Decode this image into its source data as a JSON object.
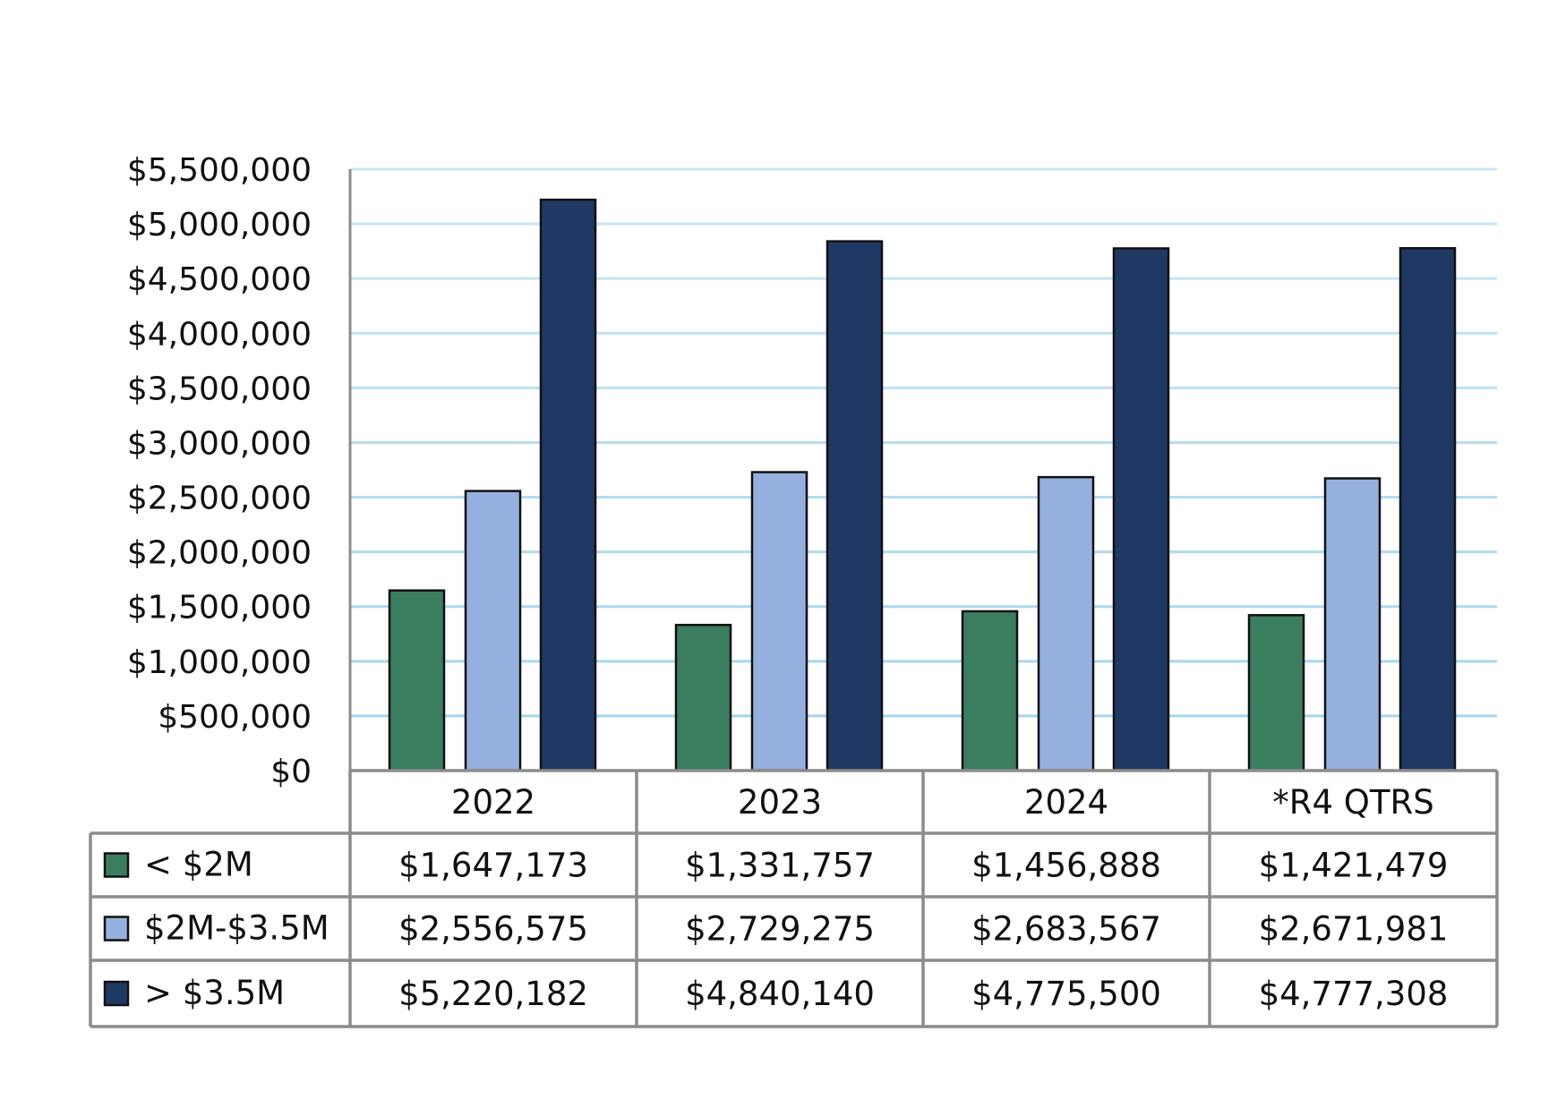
{
  "chart_data": {
    "type": "bar",
    "categories": [
      "2022",
      "2023",
      "2024",
      "*R4 QTRS"
    ],
    "series": [
      {
        "name": "< $2M",
        "color": "#3a7d5f",
        "values": [
          1647173,
          1331757,
          1456888,
          1421479
        ],
        "labels": [
          "$1,647,173",
          "$1,331,757",
          "$1,456,888",
          "$1,421,479"
        ]
      },
      {
        "name": "$2M-$3.5M",
        "color": "#95b0de",
        "values": [
          2556575,
          2729275,
          2683567,
          2671981
        ],
        "labels": [
          "$2,556,575",
          "$2,729,275",
          "$2,683,567",
          "$2,671,981"
        ]
      },
      {
        "name": "> $3.5M",
        "color": "#203864",
        "values": [
          5220182,
          4840140,
          4775500,
          4777308
        ],
        "labels": [
          "$5,220,182",
          "$4,840,140",
          "$4,775,500",
          "$4,777,308"
        ]
      }
    ],
    "ylim": [
      0,
      5500000
    ],
    "y_ticks": [
      "$0",
      "$500,000",
      "$1,000,000",
      "$1,500,000",
      "$2,000,000",
      "$2,500,000",
      "$3,000,000",
      "$3,500,000",
      "$4,000,000",
      "$4,500,000",
      "$5,000,000",
      "$5,500,000"
    ],
    "grid": true,
    "grid_color": "#9fd4ec",
    "legend": "data-table"
  }
}
